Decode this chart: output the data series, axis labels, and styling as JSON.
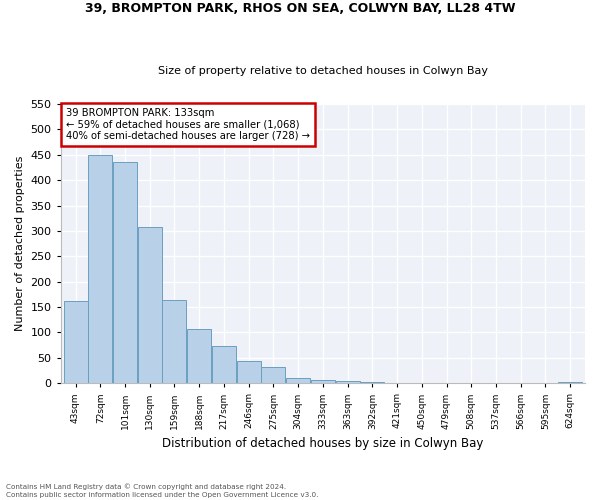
{
  "title": "39, BROMPTON PARK, RHOS ON SEA, COLWYN BAY, LL28 4TW",
  "subtitle": "Size of property relative to detached houses in Colwyn Bay",
  "xlabel": "Distribution of detached houses by size in Colwyn Bay",
  "ylabel": "Number of detached properties",
  "bar_values": [
    163,
    450,
    435,
    307,
    165,
    106,
    73,
    44,
    33,
    10,
    7,
    4,
    2,
    1,
    1,
    1,
    1,
    1,
    1,
    1,
    3
  ],
  "bar_labels": [
    "43sqm",
    "72sqm",
    "101sqm",
    "130sqm",
    "159sqm",
    "188sqm",
    "217sqm",
    "246sqm",
    "275sqm",
    "304sqm",
    "333sqm",
    "363sqm",
    "392sqm",
    "421sqm",
    "450sqm",
    "479sqm",
    "508sqm",
    "537sqm",
    "566sqm",
    "595sqm",
    "624sqm"
  ],
  "bar_color": "#b8d0e8",
  "bar_edge_color": "#6a9fc0",
  "annotation_title": "39 BROMPTON PARK: 133sqm",
  "annotation_line1": "← 59% of detached houses are smaller (1,068)",
  "annotation_line2": "40% of semi-detached houses are larger (728) →",
  "annotation_box_color": "#ffffff",
  "annotation_border_color": "#cc0000",
  "ylim": [
    0,
    550
  ],
  "yticks": [
    0,
    50,
    100,
    150,
    200,
    250,
    300,
    350,
    400,
    450,
    500,
    550
  ],
  "footer_line1": "Contains HM Land Registry data © Crown copyright and database right 2024.",
  "footer_line2": "Contains public sector information licensed under the Open Government Licence v3.0.",
  "background_color": "#eef2f8"
}
